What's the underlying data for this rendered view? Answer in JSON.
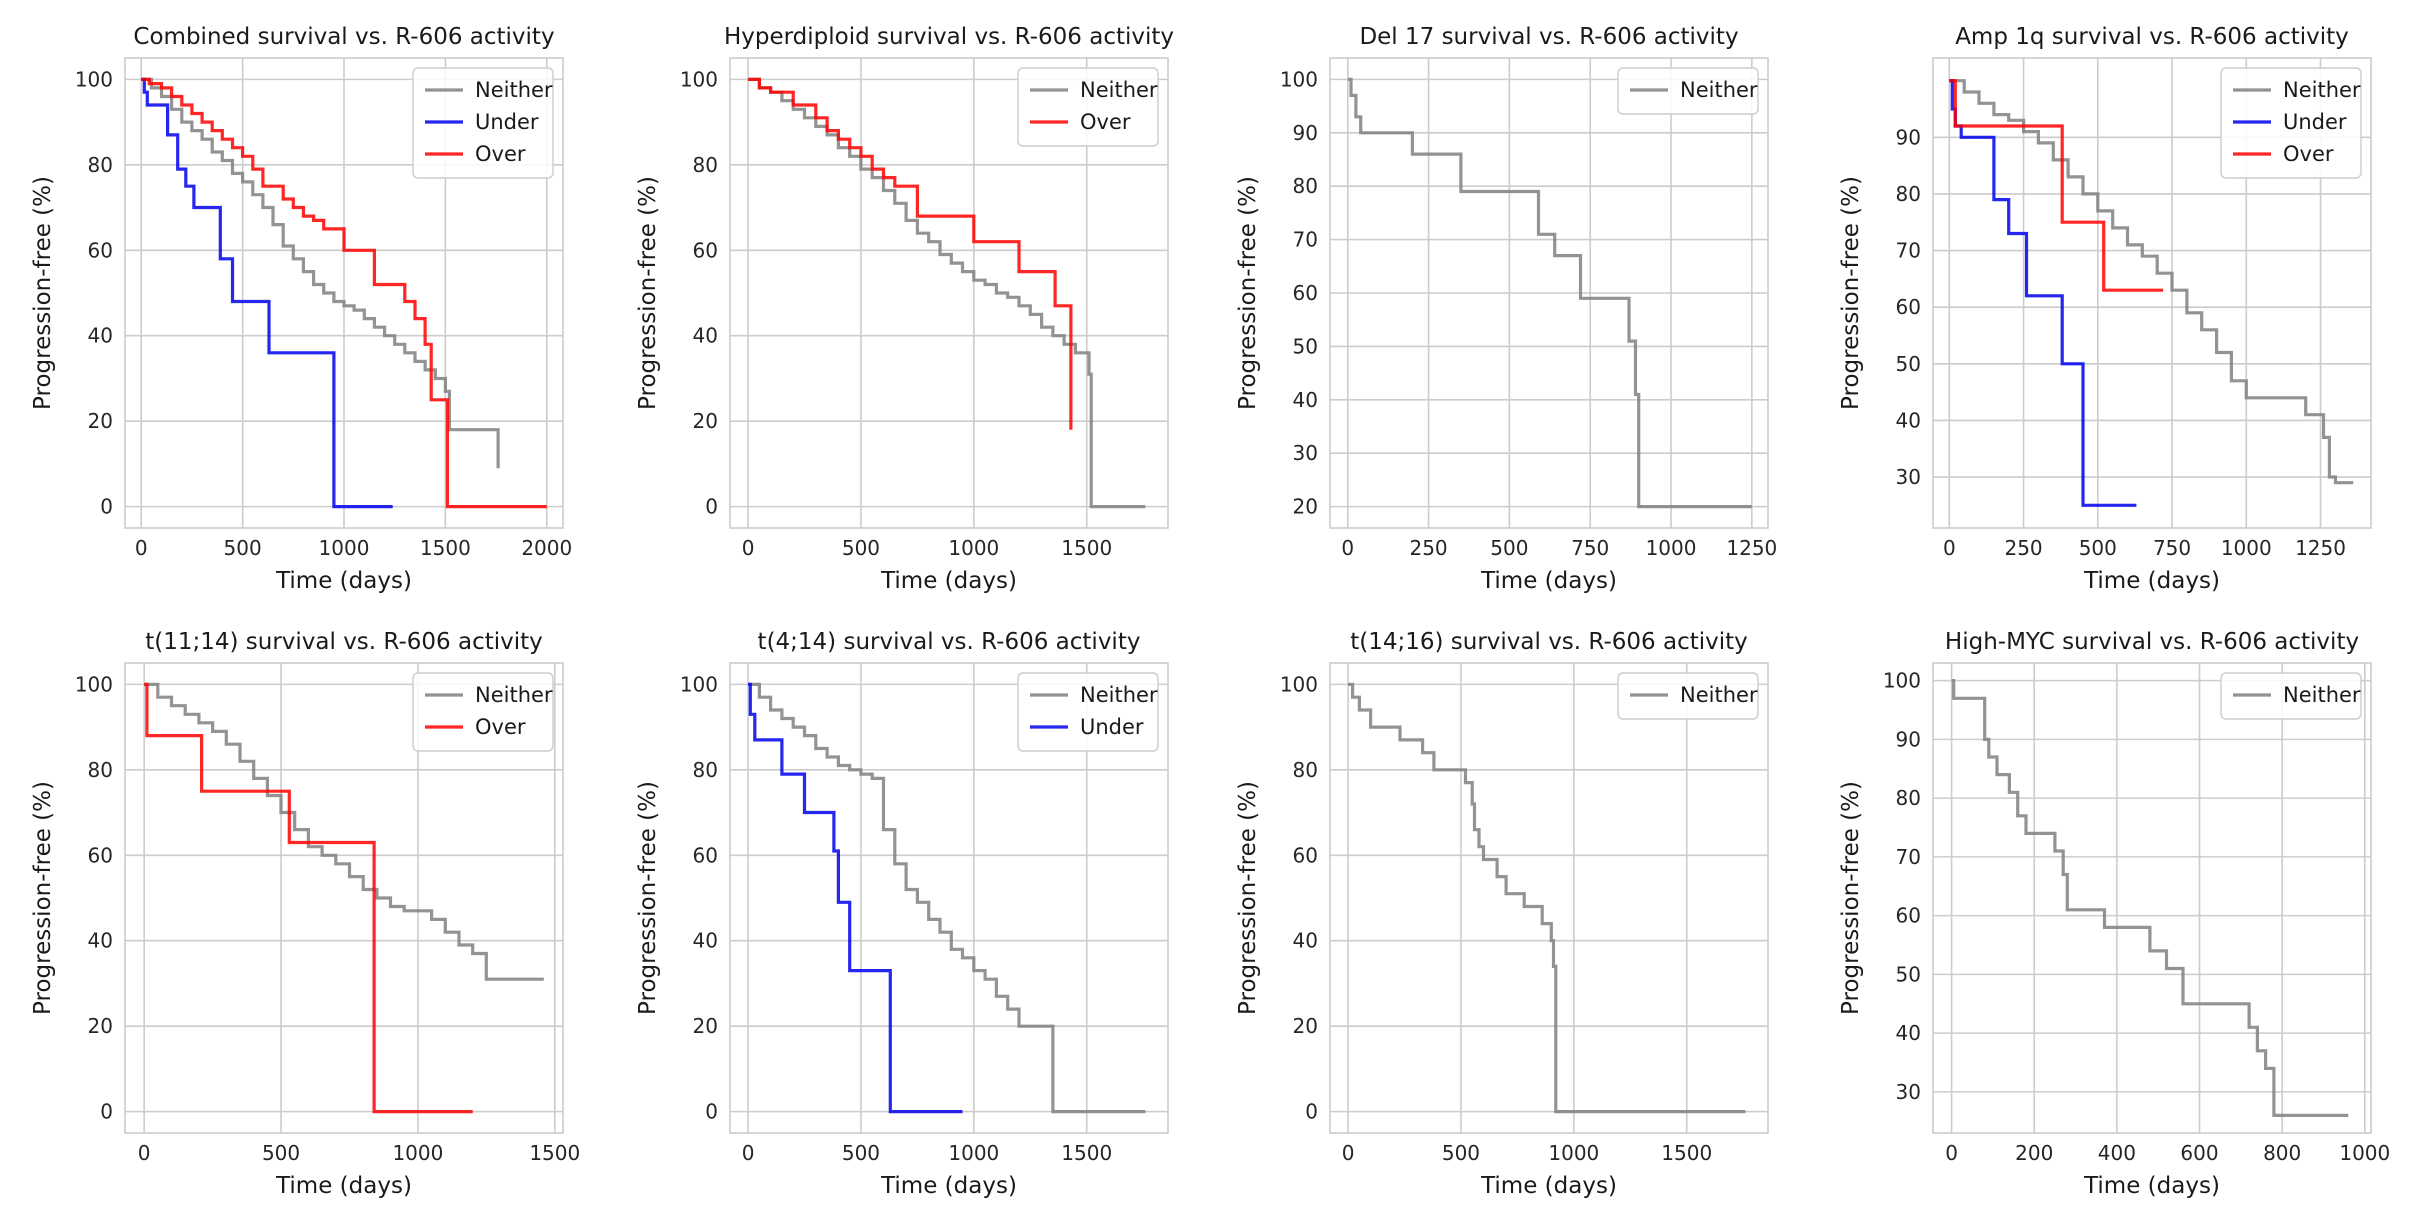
{
  "colors": {
    "Neither": "#808080",
    "Under": "#0000ee",
    "Over": "#ff0000"
  },
  "chart_data": [
    {
      "type": "line",
      "step": true,
      "title": "Combined survival vs. R-606 activity",
      "xlabel": "Time (days)",
      "ylabel": "Progression-free (%)",
      "xlim": [
        -80,
        2080
      ],
      "ylim": [
        -5,
        105
      ],
      "xticks": [
        0,
        500,
        1000,
        1500,
        2000
      ],
      "yticks": [
        0,
        20,
        40,
        60,
        80,
        100
      ],
      "legend_position": "top-right",
      "series": [
        {
          "name": "Neither",
          "x": [
            0,
            50,
            100,
            150,
            200,
            250,
            300,
            350,
            400,
            450,
            500,
            550,
            600,
            650,
            700,
            750,
            800,
            850,
            900,
            950,
            1000,
            1050,
            1100,
            1150,
            1200,
            1250,
            1300,
            1350,
            1400,
            1450,
            1500,
            1520,
            1750,
            1760
          ],
          "y": [
            100,
            98,
            96,
            93,
            90,
            88,
            86,
            83,
            81,
            78,
            76,
            73,
            70,
            66,
            61,
            58,
            55,
            52,
            50,
            48,
            47,
            46,
            44,
            42,
            40,
            38,
            36,
            34,
            32,
            30,
            27,
            18,
            18,
            9
          ]
        },
        {
          "name": "Under",
          "x": [
            0,
            15,
            30,
            130,
            180,
            220,
            260,
            390,
            420,
            450,
            630,
            950,
            1240
          ],
          "y": [
            100,
            97,
            94,
            87,
            79,
            75,
            70,
            58,
            58,
            48,
            36,
            0,
            0
          ]
        },
        {
          "name": "Over",
          "x": [
            0,
            40,
            100,
            150,
            200,
            250,
            300,
            350,
            400,
            450,
            500,
            550,
            600,
            700,
            750,
            800,
            850,
            900,
            1000,
            1150,
            1300,
            1350,
            1400,
            1430,
            1510,
            2000
          ],
          "y": [
            100,
            99,
            98,
            96,
            94,
            92,
            90,
            88,
            86,
            84,
            82,
            79,
            75,
            72,
            70,
            68,
            67,
            65,
            60,
            52,
            48,
            44,
            38,
            25,
            0,
            0
          ]
        }
      ]
    },
    {
      "type": "line",
      "step": true,
      "title": "Hyperdiploid survival vs. R-606 activity",
      "xlabel": "Time (days)",
      "ylabel": "Progression-free (%)",
      "xlim": [
        -80,
        1860
      ],
      "ylim": [
        -5,
        105
      ],
      "xticks": [
        0,
        500,
        1000,
        1500
      ],
      "yticks": [
        0,
        20,
        40,
        60,
        80,
        100
      ],
      "legend_position": "top-right",
      "series": [
        {
          "name": "Neither",
          "x": [
            0,
            50,
            100,
            150,
            200,
            250,
            300,
            350,
            400,
            450,
            500,
            550,
            600,
            650,
            700,
            750,
            800,
            850,
            900,
            950,
            1000,
            1050,
            1100,
            1150,
            1200,
            1250,
            1300,
            1350,
            1400,
            1450,
            1510,
            1520,
            1760
          ],
          "y": [
            100,
            98,
            97,
            95,
            93,
            91,
            89,
            87,
            84,
            82,
            79,
            77,
            74,
            71,
            67,
            64,
            62,
            59,
            57,
            55,
            53,
            52,
            50,
            49,
            47,
            45,
            42,
            40,
            38,
            36,
            31,
            0,
            0
          ]
        },
        {
          "name": "Over",
          "x": [
            0,
            50,
            100,
            200,
            300,
            350,
            400,
            450,
            500,
            550,
            600,
            650,
            750,
            1000,
            1200,
            1360,
            1430
          ],
          "y": [
            100,
            98,
            97,
            94,
            91,
            88,
            86,
            84,
            82,
            79,
            77,
            75,
            68,
            62,
            55,
            47,
            18
          ]
        }
      ]
    },
    {
      "type": "line",
      "step": true,
      "title": "Del 17 survival vs. R-606 activity",
      "xlabel": "Time (days)",
      "ylabel": "Progression-free (%)",
      "xlim": [
        -55,
        1300
      ],
      "ylim": [
        16,
        104
      ],
      "xticks": [
        0,
        250,
        500,
        750,
        1000,
        1250
      ],
      "yticks": [
        20,
        30,
        40,
        50,
        60,
        70,
        80,
        90,
        100
      ],
      "legend_position": "top-right",
      "series": [
        {
          "name": "Neither",
          "x": [
            0,
            10,
            25,
            40,
            200,
            350,
            590,
            640,
            720,
            870,
            890,
            900,
            1250
          ],
          "y": [
            100,
            97,
            93,
            90,
            86,
            79,
            71,
            67,
            59,
            51,
            41,
            20,
            20
          ]
        }
      ]
    },
    {
      "type": "line",
      "step": true,
      "title": "Amp 1q survival vs. R-606 activity",
      "xlabel": "Time (days)",
      "ylabel": "Progression-free (%)",
      "xlim": [
        -55,
        1420
      ],
      "ylim": [
        21,
        104
      ],
      "xticks": [
        0,
        250,
        500,
        750,
        1000,
        1250
      ],
      "yticks": [
        30,
        40,
        50,
        60,
        70,
        80,
        90
      ],
      "legend_position": "top-right",
      "series": [
        {
          "name": "Neither",
          "x": [
            0,
            50,
            100,
            150,
            200,
            250,
            300,
            350,
            400,
            450,
            500,
            550,
            600,
            650,
            700,
            750,
            800,
            850,
            900,
            950,
            1000,
            1050,
            1100,
            1200,
            1260,
            1280,
            1300,
            1360
          ],
          "y": [
            100,
            98,
            96,
            94,
            93,
            91,
            89,
            86,
            83,
            80,
            77,
            74,
            71,
            69,
            66,
            63,
            59,
            56,
            52,
            47,
            44,
            44,
            44,
            41,
            37,
            30,
            29,
            29
          ]
        },
        {
          "name": "Under",
          "x": [
            0,
            10,
            20,
            40,
            150,
            200,
            260,
            380,
            450,
            630
          ],
          "y": [
            100,
            95,
            92,
            90,
            79,
            73,
            62,
            50,
            25,
            25
          ]
        },
        {
          "name": "Over",
          "x": [
            0,
            20,
            370,
            380,
            520,
            720
          ],
          "y": [
            100,
            92,
            92,
            75,
            63,
            63
          ]
        }
      ]
    },
    {
      "type": "line",
      "step": true,
      "title": "t(11;14) survival vs. R-606 activity",
      "xlabel": "Time (days)",
      "ylabel": "Progression-free (%)",
      "xlim": [
        -70,
        1530
      ],
      "ylim": [
        -5,
        105
      ],
      "xticks": [
        0,
        500,
        1000,
        1500
      ],
      "yticks": [
        0,
        20,
        40,
        60,
        80,
        100
      ],
      "legend_position": "top-right",
      "series": [
        {
          "name": "Neither",
          "x": [
            0,
            50,
            100,
            150,
            200,
            250,
            300,
            350,
            400,
            450,
            500,
            550,
            600,
            650,
            700,
            750,
            800,
            850,
            900,
            950,
            1000,
            1050,
            1100,
            1150,
            1200,
            1250,
            1460
          ],
          "y": [
            100,
            97,
            95,
            93,
            91,
            89,
            86,
            82,
            78,
            74,
            70,
            66,
            62,
            60,
            58,
            55,
            52,
            50,
            48,
            47,
            47,
            45,
            42,
            39,
            37,
            31,
            31
          ]
        },
        {
          "name": "Over",
          "x": [
            0,
            10,
            210,
            530,
            840,
            1200
          ],
          "y": [
            100,
            88,
            75,
            63,
            0,
            0
          ]
        }
      ]
    },
    {
      "type": "line",
      "step": true,
      "title": "t(4;14) survival vs. R-606 activity",
      "xlabel": "Time (days)",
      "ylabel": "Progression-free (%)",
      "xlim": [
        -80,
        1860
      ],
      "ylim": [
        -5,
        105
      ],
      "xticks": [
        0,
        500,
        1000,
        1500
      ],
      "yticks": [
        0,
        20,
        40,
        60,
        80,
        100
      ],
      "legend_position": "top-right",
      "series": [
        {
          "name": "Neither",
          "x": [
            0,
            50,
            100,
            150,
            200,
            250,
            300,
            350,
            400,
            450,
            500,
            550,
            600,
            650,
            700,
            750,
            800,
            850,
            900,
            950,
            1000,
            1050,
            1100,
            1150,
            1200,
            1350,
            1760
          ],
          "y": [
            100,
            97,
            94,
            92,
            90,
            88,
            85,
            83,
            81,
            80,
            79,
            78,
            66,
            58,
            52,
            49,
            45,
            42,
            38,
            36,
            33,
            31,
            27,
            24,
            20,
            0,
            0
          ]
        },
        {
          "name": "Under",
          "x": [
            0,
            10,
            30,
            150,
            250,
            380,
            400,
            450,
            630,
            950
          ],
          "y": [
            100,
            93,
            87,
            79,
            70,
            61,
            49,
            33,
            0,
            0
          ]
        }
      ]
    },
    {
      "type": "line",
      "step": true,
      "title": "t(14;16) survival vs. R-606 activity",
      "xlabel": "Time (days)",
      "ylabel": "Progression-free (%)",
      "xlim": [
        -80,
        1860
      ],
      "ylim": [
        -5,
        105
      ],
      "xticks": [
        0,
        500,
        1000,
        1500
      ],
      "yticks": [
        0,
        20,
        40,
        60,
        80,
        100
      ],
      "legend_position": "top-right",
      "series": [
        {
          "name": "Neither",
          "x": [
            0,
            20,
            50,
            100,
            230,
            330,
            380,
            520,
            550,
            560,
            580,
            600,
            660,
            700,
            780,
            860,
            900,
            910,
            920,
            1760
          ],
          "y": [
            100,
            97,
            94,
            90,
            87,
            84,
            80,
            77,
            72,
            66,
            62,
            59,
            55,
            51,
            48,
            44,
            40,
            34,
            0,
            0
          ]
        }
      ]
    },
    {
      "type": "line",
      "step": true,
      "title": "High-MYC survival vs. R-606 activity",
      "xlabel": "Time (days)",
      "ylabel": "Progression-free (%)",
      "xlim": [
        -45,
        1015
      ],
      "ylim": [
        23,
        103
      ],
      "xticks": [
        0,
        200,
        400,
        600,
        800,
        1000
      ],
      "yticks": [
        30,
        40,
        50,
        60,
        70,
        80,
        90,
        100
      ],
      "legend_position": "top-right",
      "series": [
        {
          "name": "Neither",
          "x": [
            0,
            5,
            80,
            90,
            110,
            140,
            160,
            180,
            250,
            270,
            280,
            370,
            480,
            520,
            560,
            720,
            740,
            760,
            780,
            960
          ],
          "y": [
            100,
            97,
            90,
            87,
            84,
            81,
            77,
            74,
            71,
            67,
            61,
            58,
            54,
            51,
            45,
            41,
            37,
            34,
            26,
            26
          ]
        }
      ]
    }
  ]
}
